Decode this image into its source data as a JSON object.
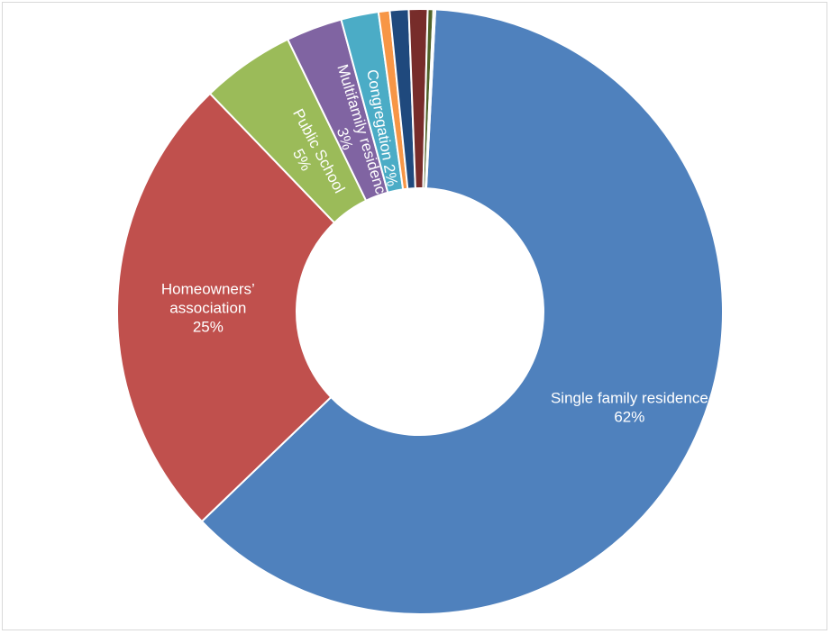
{
  "chart_data": {
    "type": "pie",
    "variant": "donut",
    "title": "",
    "legend": "none",
    "series": [
      {
        "values": [
          62,
          25,
          5,
          3,
          2,
          0.6,
          1.0,
          1.0,
          0.3,
          0.1
        ],
        "labels": [
          "Single family residence",
          "Homeowners’ association",
          "Public School",
          "Multifamily residence",
          "Congregation",
          "",
          "",
          "",
          "",
          ""
        ],
        "percent_labels": [
          "62%",
          "25%",
          "5%",
          "3%",
          "2%",
          "",
          "",
          "",
          "",
          ""
        ],
        "colors": [
          "#4f81bd",
          "#c0504d",
          "#9bbb59",
          "#8064a2",
          "#4bacc6",
          "#f79646",
          "#1f497d",
          "#772c2a",
          "#4f6228",
          "#3f3151"
        ]
      }
    ]
  }
}
